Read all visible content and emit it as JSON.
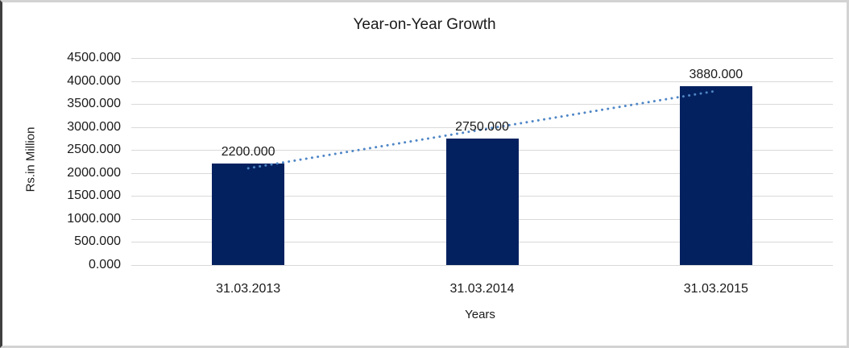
{
  "chart_data": {
    "type": "bar",
    "title": "Year-on-Year Growth",
    "categories": [
      "31.03.2013",
      "31.03.2014",
      "31.03.2015"
    ],
    "values": [
      2200,
      2750,
      3880
    ],
    "value_labels": [
      "2200.000",
      "2750.000",
      "3880.000"
    ],
    "xlabel": "Years",
    "ylabel": "Rs.in Million",
    "ylim": [
      0,
      4500
    ],
    "ytick_step": 500,
    "ytick_labels": [
      "4500.000",
      "4000.000",
      "3500.000",
      "3000.000",
      "2500.000",
      "2000.000",
      "1500.000",
      "1000.000",
      "500.000",
      "0.000"
    ],
    "grid": true,
    "legend": "none",
    "trendline": {
      "type": "linear",
      "style": "dotted"
    },
    "colors": {
      "bar": "#04215f",
      "trendline": "#4f86c6",
      "gridline": "#d9d9d9",
      "text": "#1a1a1a",
      "background": "#ffffff"
    }
  }
}
